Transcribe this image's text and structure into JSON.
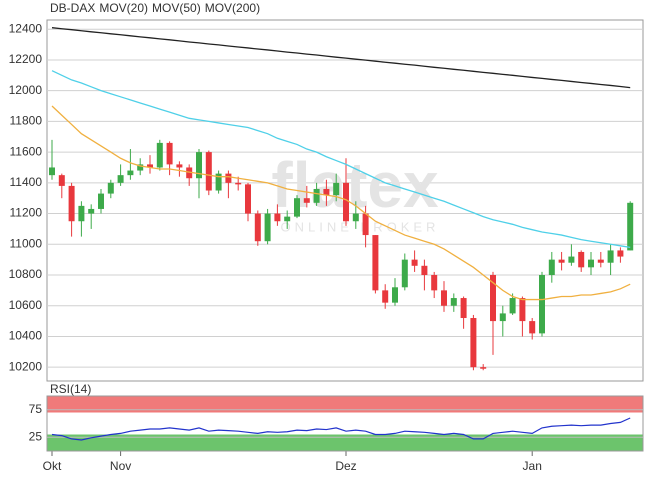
{
  "chart_data": [
    {
      "type": "candlestick",
      "categories": [
        "Okt",
        null,
        null,
        null,
        null,
        null,
        null,
        "Nov",
        null,
        null,
        null,
        null,
        null,
        null,
        null,
        null,
        null,
        null,
        null,
        null,
        null,
        null,
        null,
        null,
        null,
        null,
        null,
        null,
        null,
        null,
        "Dez",
        null,
        null,
        null,
        null,
        null,
        null,
        null,
        null,
        null,
        null,
        null,
        null,
        null,
        null,
        null,
        null,
        null,
        null,
        "Jan",
        null,
        null,
        null,
        null,
        null,
        null,
        null,
        null,
        null,
        null
      ],
      "ylim": [
        10110,
        12460
      ],
      "yticks": [
        10200,
        10400,
        10600,
        10800,
        11000,
        11200,
        11400,
        11600,
        11800,
        12000,
        12200,
        12400
      ],
      "grid": true,
      "watermark": "flatex",
      "watermark_sub": "ONLINE BROKER",
      "series": [
        {
          "name": "DB-DAX",
          "color": "#e0501e",
          "up_color": "#3daa4a",
          "down_color": "#e8383d",
          "open": [
            11450,
            11450,
            11380,
            11150,
            11200,
            11230,
            11330,
            11400,
            11450,
            11480,
            11520,
            11500,
            11660,
            11520,
            11500,
            11430,
            11600,
            11350,
            11460,
            11400,
            11390,
            11200,
            11020,
            11200,
            11150,
            11180,
            11300,
            11270,
            11360,
            11320,
            11400,
            11150,
            11200,
            11060,
            10700,
            10620,
            10720,
            10900,
            10860,
            10800,
            10700,
            10600,
            10650,
            10520,
            10200,
            10800,
            10500,
            10550,
            10650,
            10500,
            10420,
            10800,
            10900,
            10880,
            10950,
            10850,
            10900,
            10880,
            10960,
            10960
          ],
          "high": [
            11680,
            11460,
            11400,
            11280,
            11260,
            11360,
            11420,
            11520,
            11620,
            11560,
            11580,
            11680,
            11670,
            11540,
            11520,
            11620,
            11610,
            11480,
            11480,
            11440,
            11400,
            11220,
            11230,
            11260,
            11220,
            11320,
            11380,
            11400,
            11420,
            11460,
            11560,
            11280,
            11250,
            11060,
            10740,
            10780,
            10940,
            10960,
            10900,
            10820,
            10760,
            10680,
            10660,
            10540,
            10220,
            10820,
            10600,
            10680,
            10660,
            10520,
            10820,
            10950,
            10950,
            11000,
            10960,
            10950,
            10950,
            11000,
            10980,
            11280
          ],
          "low": [
            11420,
            11300,
            11050,
            11050,
            11100,
            11200,
            11300,
            11380,
            11420,
            11450,
            11460,
            11480,
            11450,
            11440,
            11380,
            11300,
            11320,
            11330,
            11300,
            11350,
            11150,
            10990,
            11000,
            11120,
            11100,
            11170,
            11240,
            11250,
            11250,
            11280,
            11120,
            11100,
            10980,
            10680,
            10580,
            10600,
            10700,
            10820,
            10700,
            10650,
            10560,
            10560,
            10450,
            10180,
            10180,
            10280,
            10400,
            10540,
            10400,
            10380,
            10400,
            10750,
            10830,
            10860,
            10820,
            10800,
            10850,
            10800,
            10880,
            10960
          ],
          "close": [
            11500,
            11380,
            11150,
            11250,
            11230,
            11330,
            11400,
            11450,
            11480,
            11520,
            11500,
            11660,
            11520,
            11500,
            11430,
            11600,
            11350,
            11460,
            11400,
            11390,
            11200,
            11020,
            11200,
            11150,
            11180,
            11300,
            11270,
            11360,
            11320,
            11400,
            11150,
            11200,
            11060,
            10700,
            10620,
            10720,
            10900,
            10860,
            10800,
            10700,
            10600,
            10650,
            10520,
            10200,
            10190,
            10500,
            10550,
            10650,
            10500,
            10420,
            10800,
            10900,
            10880,
            10920,
            10850,
            10900,
            10880,
            10960,
            10920,
            11270
          ]
        },
        {
          "name": "MOV(20)",
          "color": "#f0b040",
          "values": [
            11900,
            11840,
            11780,
            11720,
            11680,
            11640,
            11600,
            11560,
            11530,
            11510,
            11500,
            11490,
            11490,
            11480,
            11470,
            11460,
            11450,
            11440,
            11440,
            11430,
            11420,
            11410,
            11400,
            11380,
            11360,
            11350,
            11340,
            11330,
            11320,
            11310,
            11290,
            11250,
            11200,
            11150,
            11120,
            11090,
            11060,
            11040,
            11020,
            11000,
            10970,
            10930,
            10890,
            10850,
            10800,
            10750,
            10700,
            10660,
            10640,
            10640,
            10640,
            10650,
            10660,
            10660,
            10670,
            10670,
            10680,
            10690,
            10710,
            10740
          ]
        },
        {
          "name": "MOV(50)",
          "color": "#4fd0e8",
          "values": [
            12130,
            12100,
            12070,
            12050,
            12025,
            12000,
            11980,
            11960,
            11940,
            11920,
            11900,
            11880,
            11860,
            11840,
            11820,
            11810,
            11800,
            11790,
            11780,
            11770,
            11760,
            11740,
            11720,
            11690,
            11670,
            11650,
            11620,
            11600,
            11570,
            11545,
            11520,
            11490,
            11460,
            11430,
            11400,
            11380,
            11360,
            11340,
            11320,
            11300,
            11280,
            11255,
            11230,
            11205,
            11180,
            11160,
            11145,
            11130,
            11110,
            11095,
            11080,
            11070,
            11060,
            11045,
            11030,
            11020,
            11010,
            11000,
            10990,
            10980
          ]
        },
        {
          "name": "MOV(200)",
          "color": "#222222",
          "values": [
            12410,
            12403,
            12397,
            12390,
            12383,
            12377,
            12370,
            12364,
            12357,
            12350,
            12344,
            12337,
            12331,
            12324,
            12317,
            12311,
            12304,
            12298,
            12291,
            12284,
            12278,
            12271,
            12265,
            12258,
            12251,
            12245,
            12238,
            12232,
            12225,
            12218,
            12212,
            12205,
            12199,
            12192,
            12185,
            12179,
            12172,
            12166,
            12159,
            12152,
            12146,
            12139,
            12133,
            12126,
            12119,
            12113,
            12106,
            12100,
            12093,
            12086,
            12080,
            12073,
            12067,
            12060,
            12053,
            12047,
            12040,
            12034,
            12027,
            12020
          ]
        }
      ]
    },
    {
      "type": "line",
      "title": "RSI(14)",
      "ylim": [
        0,
        100
      ],
      "yticks": [
        25,
        75
      ],
      "color": "#2233cc",
      "zones": [
        {
          "from": 70,
          "to": 100,
          "color": "#f07a7a"
        },
        {
          "from": 0,
          "to": 30,
          "color": "#6cc46c"
        }
      ],
      "values": [
        30,
        28,
        22,
        20,
        24,
        27,
        30,
        32,
        36,
        38,
        40,
        40,
        42,
        40,
        38,
        42,
        36,
        38,
        37,
        36,
        34,
        32,
        35,
        34,
        35,
        38,
        37,
        40,
        39,
        42,
        36,
        38,
        36,
        30,
        30,
        32,
        36,
        35,
        34,
        32,
        30,
        32,
        30,
        22,
        22,
        32,
        34,
        36,
        34,
        32,
        42,
        45,
        46,
        47,
        46,
        47,
        47,
        50,
        52,
        60
      ]
    }
  ]
}
